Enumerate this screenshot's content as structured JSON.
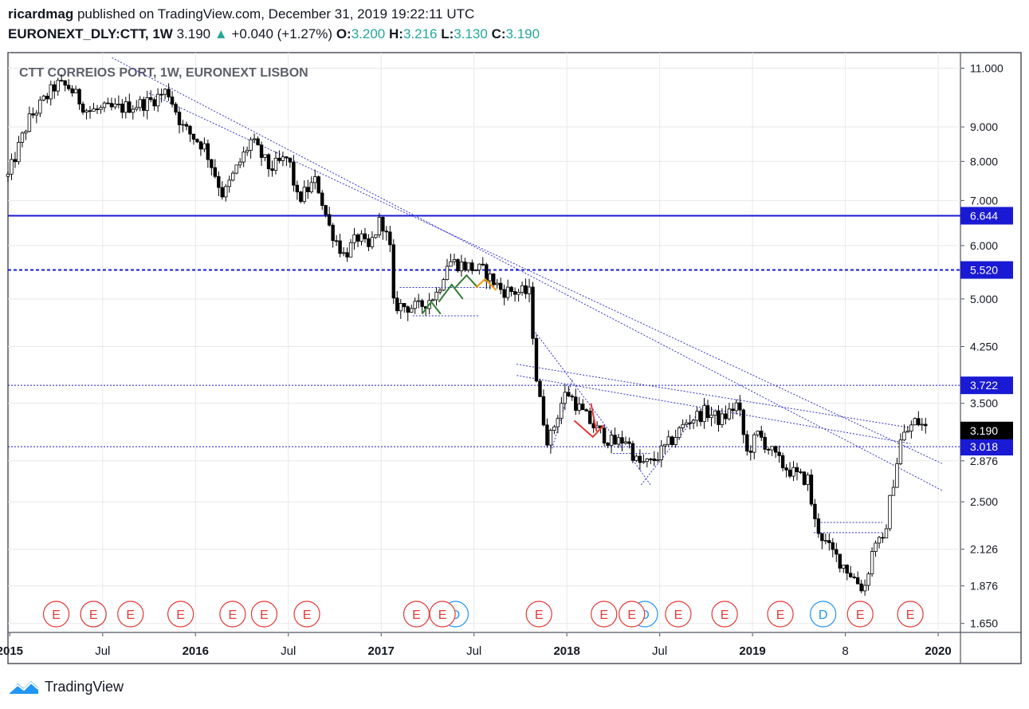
{
  "header": {
    "author": "ricardmag",
    "published": "published on TradingView.com, December 31, 2019 19:22:11 UTC",
    "symbol": "EURONEXT_DLY:CTT, 1W",
    "last": "3.190",
    "change": "+0.040 (+1.27%)",
    "o_label": "O:",
    "o": "3.200",
    "h_label": "H:",
    "h": "3.216",
    "l_label": "L:",
    "l": "3.130",
    "c_label": "C:",
    "c": "3.190"
  },
  "footer": {
    "brand": "TradingView"
  },
  "colors": {
    "bull": "#26a69a",
    "line_blue": "#1a1ad4",
    "trend": "#3333cc",
    "earnings": "#e53935",
    "dividend": "#2196f3",
    "grid": "#e8e8e8"
  },
  "chart_data": {
    "type": "candlestick",
    "title": "CTT CORREIOS PORT, 1W, EURONEXT LISBON",
    "scale": "log",
    "ylim": [
      1.6,
      11.6
    ],
    "y_ticks": [
      11.0,
      9.0,
      8.0,
      7.0,
      6.0,
      5.0,
      4.25,
      3.5,
      2.876,
      2.5,
      2.126,
      1.876,
      1.65
    ],
    "y_tick_labels": [
      "11.000",
      "9.000",
      "8.000",
      "7.000",
      "6.000",
      "5.000",
      "4.250",
      "3.500",
      "2.876",
      "2.500",
      "2.126",
      "1.876",
      "1.650"
    ],
    "x_ticks": [
      {
        "t": 2015.0,
        "label": "2015",
        "bold": true
      },
      {
        "t": 2015.5,
        "label": "Jul",
        "bold": false
      },
      {
        "t": 2016.0,
        "label": "2016",
        "bold": true
      },
      {
        "t": 2016.5,
        "label": "Jul",
        "bold": false
      },
      {
        "t": 2017.0,
        "label": "2017",
        "bold": true
      },
      {
        "t": 2017.5,
        "label": "Jul",
        "bold": false
      },
      {
        "t": 2018.0,
        "label": "2018",
        "bold": true
      },
      {
        "t": 2018.5,
        "label": "Jul",
        "bold": false
      },
      {
        "t": 2019.0,
        "label": "2019",
        "bold": true
      },
      {
        "t": 2019.5,
        "label": "8",
        "bold": false
      },
      {
        "t": 2020.0,
        "label": "2020",
        "bold": true
      }
    ],
    "xlim": [
      2014.99,
      2020.12
    ],
    "price_path": [
      [
        2014.99,
        7.6
      ],
      [
        2015.1,
        9.2
      ],
      [
        2015.25,
        10.4
      ],
      [
        2015.32,
        10.3
      ],
      [
        2015.42,
        9.5
      ],
      [
        2015.6,
        9.6
      ],
      [
        2015.75,
        9.8
      ],
      [
        2015.85,
        10.2
      ],
      [
        2015.93,
        9.0
      ],
      [
        2016.05,
        8.4
      ],
      [
        2016.15,
        7.1
      ],
      [
        2016.2,
        7.6
      ],
      [
        2016.3,
        8.6
      ],
      [
        2016.4,
        7.8
      ],
      [
        2016.5,
        8.1
      ],
      [
        2016.55,
        7.0
      ],
      [
        2016.65,
        7.5
      ],
      [
        2016.72,
        6.4
      ],
      [
        2016.8,
        5.8
      ],
      [
        2016.88,
        6.2
      ],
      [
        2016.93,
        5.9
      ],
      [
        2017.0,
        6.6
      ],
      [
        2017.05,
        5.9
      ],
      [
        2017.06,
        4.9
      ],
      [
        2017.2,
        4.85
      ],
      [
        2017.3,
        5.1
      ],
      [
        2017.36,
        5.7
      ],
      [
        2017.45,
        5.6
      ],
      [
        2017.55,
        5.5
      ],
      [
        2017.65,
        5.15
      ],
      [
        2017.8,
        5.1
      ],
      [
        2017.84,
        3.7
      ],
      [
        2017.9,
        3.05
      ],
      [
        2017.97,
        3.5
      ],
      [
        2018.0,
        3.65
      ],
      [
        2018.08,
        3.4
      ],
      [
        2018.16,
        3.2
      ],
      [
        2018.25,
        3.05
      ],
      [
        2018.32,
        3.1
      ],
      [
        2018.38,
        2.85
      ],
      [
        2018.45,
        2.85
      ],
      [
        2018.55,
        3.05
      ],
      [
        2018.65,
        3.3
      ],
      [
        2018.75,
        3.4
      ],
      [
        2018.83,
        3.3
      ],
      [
        2018.92,
        3.5
      ],
      [
        2018.97,
        2.95
      ],
      [
        2019.03,
        3.15
      ],
      [
        2019.15,
        2.85
      ],
      [
        2019.25,
        2.72
      ],
      [
        2019.3,
        2.7
      ],
      [
        2019.33,
        2.35
      ],
      [
        2019.4,
        2.15
      ],
      [
        2019.5,
        2.0
      ],
      [
        2019.6,
        1.85
      ],
      [
        2019.66,
        2.2
      ],
      [
        2019.7,
        2.15
      ],
      [
        2019.75,
        2.6
      ],
      [
        2019.8,
        3.1
      ],
      [
        2019.88,
        3.3
      ],
      [
        2019.95,
        3.19
      ]
    ],
    "horizontal_levels": [
      {
        "value": 6.644,
        "label": "6.644",
        "style": "solid"
      },
      {
        "value": 5.52,
        "label": "5.520",
        "style": "dashed"
      },
      {
        "value": 3.722,
        "label": "3.722",
        "style": "dotted"
      },
      {
        "value": 3.018,
        "label": "3.018",
        "style": "dotted"
      }
    ],
    "last_price": {
      "value": 3.19,
      "label": "3.190"
    },
    "trendlines": [
      {
        "t1": 2015.55,
        "p1": 11.4,
        "t2": 2020.02,
        "p2": 2.6
      },
      {
        "t1": 2015.75,
        "p1": 10.1,
        "t2": 2020.02,
        "p2": 2.85
      },
      {
        "t1": 2017.73,
        "p1": 4.0,
        "t2": 2019.85,
        "p2": 3.22
      },
      {
        "t1": 2017.73,
        "p1": 3.85,
        "t2": 2019.85,
        "p2": 3.05
      },
      {
        "t1": 2017.82,
        "p1": 4.5,
        "t2": 2018.3,
        "p2": 3.0
      },
      {
        "t1": 2017.92,
        "p1": 3.0,
        "t2": 2018.03,
        "p2": 3.8
      },
      {
        "t1": 2018.4,
        "p1": 2.65,
        "t2": 2018.75,
        "p2": 3.5
      },
      {
        "t1": 2018.45,
        "p1": 2.65,
        "t2": 2018.35,
        "p2": 2.9
      },
      {
        "t1": 2019.35,
        "p1": 2.33,
        "t2": 2019.7,
        "p2": 2.33
      },
      {
        "t1": 2019.33,
        "p1": 2.25,
        "t2": 2019.7,
        "p2": 2.25
      },
      {
        "t1": 2017.1,
        "p1": 5.2,
        "t2": 2017.6,
        "p2": 5.2
      },
      {
        "t1": 2017.17,
        "p1": 4.72,
        "t2": 2017.53,
        "p2": 4.72
      },
      {
        "t1": 2018.25,
        "p1": 2.95,
        "t2": 2018.45,
        "p2": 2.95
      }
    ],
    "zigzags": [
      {
        "color": "#2e7d32",
        "pts": [
          [
            2017.22,
            4.75
          ],
          [
            2017.27,
            4.95
          ],
          [
            2017.32,
            4.75
          ]
        ]
      },
      {
        "color": "#2e7d32",
        "pts": [
          [
            2017.31,
            4.95
          ],
          [
            2017.38,
            5.25
          ],
          [
            2017.44,
            5.0
          ]
        ]
      },
      {
        "color": "#2e7d32",
        "pts": [
          [
            2017.4,
            5.2
          ],
          [
            2017.46,
            5.42
          ],
          [
            2017.52,
            5.2
          ]
        ]
      },
      {
        "color": "#f59b00",
        "pts": [
          [
            2017.51,
            5.2
          ],
          [
            2017.56,
            5.35
          ],
          [
            2017.62,
            5.15
          ]
        ]
      },
      {
        "color": "#e53935",
        "pts": [
          [
            2018.04,
            3.3
          ],
          [
            2018.14,
            3.12
          ],
          [
            2018.2,
            3.25
          ]
        ]
      },
      {
        "color": "#e53935",
        "pts": [
          [
            2018.13,
            3.5
          ],
          [
            2018.16,
            3.18
          ]
        ]
      }
    ],
    "event_markers": [
      {
        "t": 2015.25,
        "type": "E"
      },
      {
        "t": 2015.45,
        "type": "D"
      },
      {
        "t": 2015.45,
        "type": "E"
      },
      {
        "t": 2015.65,
        "type": "E"
      },
      {
        "t": 2015.92,
        "type": "E"
      },
      {
        "t": 2016.2,
        "type": "E"
      },
      {
        "t": 2016.37,
        "type": "E"
      },
      {
        "t": 2016.6,
        "type": "E"
      },
      {
        "t": 2017.19,
        "type": "E"
      },
      {
        "t": 2017.4,
        "type": "D"
      },
      {
        "t": 2017.33,
        "type": "E"
      },
      {
        "t": 2017.85,
        "type": "E"
      },
      {
        "t": 2018.2,
        "type": "E"
      },
      {
        "t": 2018.42,
        "type": "D"
      },
      {
        "t": 2018.35,
        "type": "E"
      },
      {
        "t": 2018.6,
        "type": "E"
      },
      {
        "t": 2018.85,
        "type": "E"
      },
      {
        "t": 2019.15,
        "type": "E"
      },
      {
        "t": 2019.38,
        "type": "D"
      },
      {
        "t": 2019.58,
        "type": "E"
      },
      {
        "t": 2019.85,
        "type": "E"
      },
      {
        "t": 2020.15,
        "type": "E"
      }
    ]
  }
}
